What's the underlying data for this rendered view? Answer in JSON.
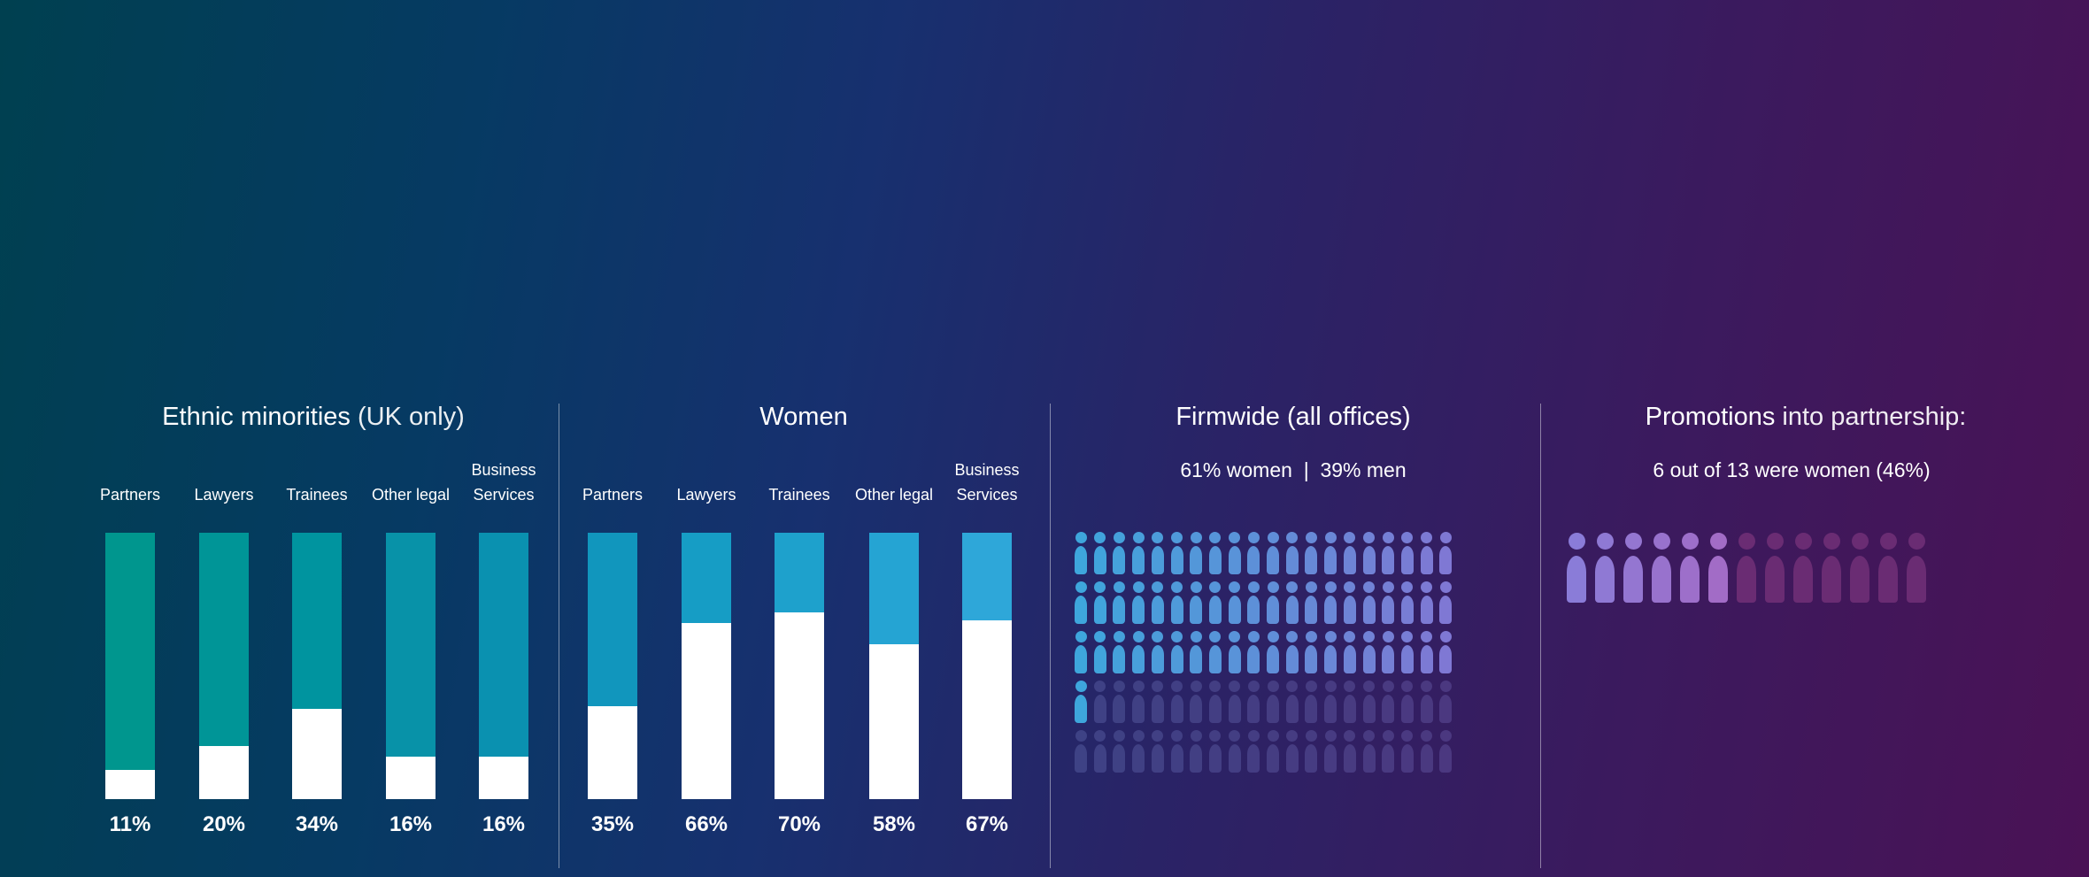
{
  "chart_data": [
    {
      "type": "bar",
      "title": "Ethnic minorities",
      "title_suffix": "(UK only)",
      "categories": [
        "Partners",
        "Lawyers",
        "Trainees",
        "Other legal",
        "Business Services"
      ],
      "values": [
        11,
        20,
        34,
        16,
        16
      ],
      "labels": [
        "11%",
        "20%",
        "34%",
        "16%",
        "16%"
      ],
      "ylim": [
        0,
        100
      ],
      "colors": [
        "#00968e",
        "#009597",
        "#00949f",
        "#0892a8",
        "#0a91b0"
      ]
    },
    {
      "type": "bar",
      "title": "Women",
      "categories": [
        "Partners",
        "Lawyers",
        "Trainees",
        "Other legal",
        "Business Services"
      ],
      "values": [
        35,
        66,
        70,
        58,
        67
      ],
      "labels": [
        "35%",
        "66%",
        "70%",
        "58%",
        "67%"
      ],
      "ylim": [
        0,
        100
      ],
      "colors": [
        "#1196bd",
        "#169dc5",
        "#1ea1cc",
        "#25a4d3",
        "#2ea7d9"
      ]
    },
    {
      "type": "pictogram",
      "title": "Firmwide (all offices)",
      "subtitle_women": "61% women",
      "subtitle_sep": "|",
      "subtitle_men": "39% men",
      "total": 100,
      "highlighted": 61,
      "colors": {
        "start": "#3ea6dc",
        "end": "#7f78d4",
        "dim": "#3e4285"
      }
    },
    {
      "type": "pictogram",
      "title_bold": "Promotions",
      "title_rest": "into partnership:",
      "subtitle_bold": "6 out of 13",
      "subtitle_rest": "were women (46%)",
      "total": 13,
      "highlighted": 6,
      "colors": {
        "start": "#8a7cd8",
        "end": "#a26cc6",
        "dim": "#6a2c73"
      }
    }
  ]
}
